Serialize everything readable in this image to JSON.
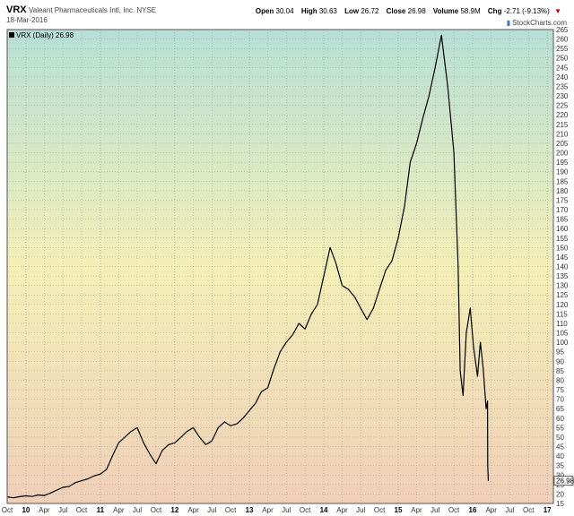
{
  "header": {
    "symbol": "VRX",
    "company": "Valeant Pharmaceuticals Intl, Inc.  NYSE",
    "date": "18-Mar-2016",
    "open_label": "Open",
    "open": "30.04",
    "high_label": "High",
    "high": "30.63",
    "low_label": "Low",
    "low": "26.72",
    "close_label": "Close",
    "close": "26.98",
    "volume_label": "Volume",
    "volume": "58.9M",
    "chg_label": "Chg",
    "chg": "-2.71 (-9.13%)",
    "chg_arrow": "▼",
    "brand": "StockCharts.com",
    "brand_icon": "chart-logo-icon"
  },
  "colors": {
    "bg_top": "#b7dfd6",
    "bg_mid": "#f3efb6",
    "bg_bottom": "#efcfb8",
    "line": "#000000",
    "grid": "#9a9a9a"
  },
  "chart_data": {
    "type": "line",
    "legend": "VRX (Daily) 26.98",
    "last_value_label": "26.98",
    "ylim": [
      15,
      265
    ],
    "y_ticks": [
      15,
      20,
      25,
      30,
      35,
      40,
      45,
      50,
      55,
      60,
      65,
      70,
      75,
      80,
      85,
      90,
      95,
      100,
      105,
      110,
      115,
      120,
      125,
      130,
      135,
      140,
      145,
      150,
      155,
      160,
      165,
      170,
      175,
      180,
      185,
      190,
      195,
      200,
      205,
      210,
      215,
      220,
      225,
      230,
      235,
      240,
      245,
      250,
      255,
      260,
      265
    ],
    "x_range": [
      "2009-10-01",
      "2017-01-31"
    ],
    "x_ticks": [
      {
        "label": "Oct",
        "date": "2009-10-01"
      },
      {
        "label": "10",
        "date": "2010-01-01",
        "year": true
      },
      {
        "label": "Apr",
        "date": "2010-04-01"
      },
      {
        "label": "Jul",
        "date": "2010-07-01"
      },
      {
        "label": "Oct",
        "date": "2010-10-01"
      },
      {
        "label": "11",
        "date": "2011-01-01",
        "year": true
      },
      {
        "label": "Apr",
        "date": "2011-04-01"
      },
      {
        "label": "Jul",
        "date": "2011-07-01"
      },
      {
        "label": "Oct",
        "date": "2011-10-01"
      },
      {
        "label": "12",
        "date": "2012-01-01",
        "year": true
      },
      {
        "label": "Apr",
        "date": "2012-04-01"
      },
      {
        "label": "Jul",
        "date": "2012-07-01"
      },
      {
        "label": "Oct",
        "date": "2012-10-01"
      },
      {
        "label": "13",
        "date": "2013-01-01",
        "year": true
      },
      {
        "label": "Apr",
        "date": "2013-04-01"
      },
      {
        "label": "Jul",
        "date": "2013-07-01"
      },
      {
        "label": "Oct",
        "date": "2013-10-01"
      },
      {
        "label": "14",
        "date": "2014-01-01",
        "year": true
      },
      {
        "label": "Apr",
        "date": "2014-04-01"
      },
      {
        "label": "Jul",
        "date": "2014-07-01"
      },
      {
        "label": "Oct",
        "date": "2014-10-01"
      },
      {
        "label": "15",
        "date": "2015-01-01",
        "year": true
      },
      {
        "label": "Apr",
        "date": "2015-04-01"
      },
      {
        "label": "Jul",
        "date": "2015-07-01"
      },
      {
        "label": "Oct",
        "date": "2015-10-01"
      },
      {
        "label": "16",
        "date": "2016-01-01",
        "year": true
      },
      {
        "label": "Apr",
        "date": "2016-04-01"
      },
      {
        "label": "Jul",
        "date": "2016-07-01"
      },
      {
        "label": "Oct",
        "date": "2016-10-01"
      },
      {
        "label": "17",
        "date": "2017-01-01",
        "year": true
      }
    ],
    "grid": true,
    "series": [
      {
        "name": "VRX (Daily)",
        "points": [
          [
            "2009-10-01",
            18.5
          ],
          [
            "2009-11-01",
            18.0
          ],
          [
            "2009-12-01",
            18.6
          ],
          [
            "2010-01-01",
            19.0
          ],
          [
            "2010-02-01",
            18.7
          ],
          [
            "2010-03-01",
            19.5
          ],
          [
            "2010-04-01",
            19.2
          ],
          [
            "2010-05-01",
            20.5
          ],
          [
            "2010-06-01",
            22.0
          ],
          [
            "2010-07-01",
            23.5
          ],
          [
            "2010-08-01",
            24.0
          ],
          [
            "2010-09-01",
            26.0
          ],
          [
            "2010-10-01",
            27.0
          ],
          [
            "2010-11-01",
            28.0
          ],
          [
            "2010-12-01",
            29.5
          ],
          [
            "2011-01-01",
            30.5
          ],
          [
            "2011-02-01",
            33.0
          ],
          [
            "2011-03-01",
            40.0
          ],
          [
            "2011-04-01",
            47.0
          ],
          [
            "2011-05-01",
            50.0
          ],
          [
            "2011-06-01",
            53.0
          ],
          [
            "2011-07-01",
            55.0
          ],
          [
            "2011-08-01",
            47.0
          ],
          [
            "2011-09-01",
            41.0
          ],
          [
            "2011-10-01",
            36.0
          ],
          [
            "2011-11-01",
            43.0
          ],
          [
            "2011-12-01",
            46.0
          ],
          [
            "2012-01-01",
            47.0
          ],
          [
            "2012-02-01",
            50.0
          ],
          [
            "2012-03-01",
            53.0
          ],
          [
            "2012-04-01",
            55.0
          ],
          [
            "2012-05-01",
            50.0
          ],
          [
            "2012-06-01",
            46.0
          ],
          [
            "2012-07-01",
            48.0
          ],
          [
            "2012-08-01",
            55.0
          ],
          [
            "2012-09-01",
            58.0
          ],
          [
            "2012-10-01",
            56.0
          ],
          [
            "2012-11-01",
            57.0
          ],
          [
            "2012-12-01",
            60.0
          ],
          [
            "2013-01-01",
            64.0
          ],
          [
            "2013-02-01",
            68.0
          ],
          [
            "2013-03-01",
            74.0
          ],
          [
            "2013-04-01",
            76.0
          ],
          [
            "2013-05-01",
            86.0
          ],
          [
            "2013-06-01",
            95.0
          ],
          [
            "2013-07-01",
            100.0
          ],
          [
            "2013-08-01",
            104.0
          ],
          [
            "2013-09-01",
            110.0
          ],
          [
            "2013-10-01",
            107.0
          ],
          [
            "2013-11-01",
            115.0
          ],
          [
            "2013-12-01",
            120.0
          ],
          [
            "2014-01-01",
            135.0
          ],
          [
            "2014-02-01",
            150.0
          ],
          [
            "2014-03-01",
            142.0
          ],
          [
            "2014-04-01",
            130.0
          ],
          [
            "2014-05-01",
            128.0
          ],
          [
            "2014-06-01",
            124.0
          ],
          [
            "2014-07-01",
            118.0
          ],
          [
            "2014-08-01",
            112.0
          ],
          [
            "2014-09-01",
            118.0
          ],
          [
            "2014-10-01",
            128.0
          ],
          [
            "2014-11-01",
            138.0
          ],
          [
            "2014-12-01",
            143.0
          ],
          [
            "2015-01-01",
            155.0
          ],
          [
            "2015-02-01",
            172.0
          ],
          [
            "2015-03-01",
            195.0
          ],
          [
            "2015-04-01",
            205.0
          ],
          [
            "2015-05-01",
            218.0
          ],
          [
            "2015-06-01",
            230.0
          ],
          [
            "2015-07-01",
            245.0
          ],
          [
            "2015-08-01",
            262.0
          ],
          [
            "2015-09-01",
            235.0
          ],
          [
            "2015-10-01",
            200.0
          ],
          [
            "2015-10-22",
            140.0
          ],
          [
            "2015-11-01",
            85.0
          ],
          [
            "2015-11-15",
            72.0
          ],
          [
            "2015-12-01",
            105.0
          ],
          [
            "2015-12-20",
            118.0
          ],
          [
            "2016-01-05",
            98.0
          ],
          [
            "2016-01-25",
            82.0
          ],
          [
            "2016-02-08",
            100.0
          ],
          [
            "2016-02-22",
            86.0
          ],
          [
            "2016-03-07",
            65.0
          ],
          [
            "2016-03-14",
            69.0
          ],
          [
            "2016-03-15",
            35.0
          ],
          [
            "2016-03-18",
            26.98
          ]
        ]
      }
    ]
  }
}
